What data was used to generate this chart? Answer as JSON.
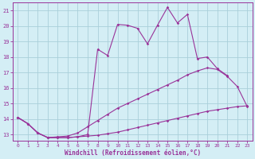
{
  "xlabel": "Windchill (Refroidissement éolien,°C)",
  "background_color": "#d4eef5",
  "grid_color": "#aacfda",
  "line_color": "#993399",
  "x_values": [
    0,
    1,
    2,
    3,
    4,
    5,
    6,
    7,
    8,
    9,
    10,
    11,
    12,
    13,
    14,
    15,
    16,
    17,
    18,
    19,
    20,
    21,
    22,
    23
  ],
  "series_upper": [
    14.1,
    13.7,
    13.1,
    12.8,
    12.8,
    12.8,
    12.85,
    13.0,
    18.5,
    18.1,
    20.1,
    20.05,
    19.85,
    18.85,
    20.05,
    21.2,
    20.2,
    20.75,
    17.9,
    18.0,
    17.25,
    16.8,
    null,
    null
  ],
  "series_mid": [
    14.1,
    13.7,
    13.1,
    12.8,
    12.85,
    12.9,
    13.1,
    13.5,
    13.9,
    14.3,
    14.7,
    15.0,
    15.3,
    15.6,
    15.9,
    16.2,
    16.5,
    16.85,
    17.1,
    17.3,
    17.2,
    16.75,
    16.1,
    14.8
  ],
  "series_lower": [
    14.1,
    13.7,
    13.1,
    12.8,
    12.8,
    12.8,
    12.85,
    12.9,
    12.95,
    13.05,
    13.15,
    13.3,
    13.45,
    13.6,
    13.75,
    13.9,
    14.05,
    14.2,
    14.35,
    14.5,
    14.6,
    14.7,
    14.8,
    14.85
  ],
  "ylim": [
    12.6,
    21.5
  ],
  "xlim": [
    -0.5,
    23.5
  ],
  "yticks": [
    13,
    14,
    15,
    16,
    17,
    18,
    19,
    20,
    21
  ],
  "xticks": [
    0,
    1,
    2,
    3,
    4,
    5,
    6,
    7,
    8,
    9,
    10,
    11,
    12,
    13,
    14,
    15,
    16,
    17,
    18,
    19,
    20,
    21,
    22,
    23
  ]
}
